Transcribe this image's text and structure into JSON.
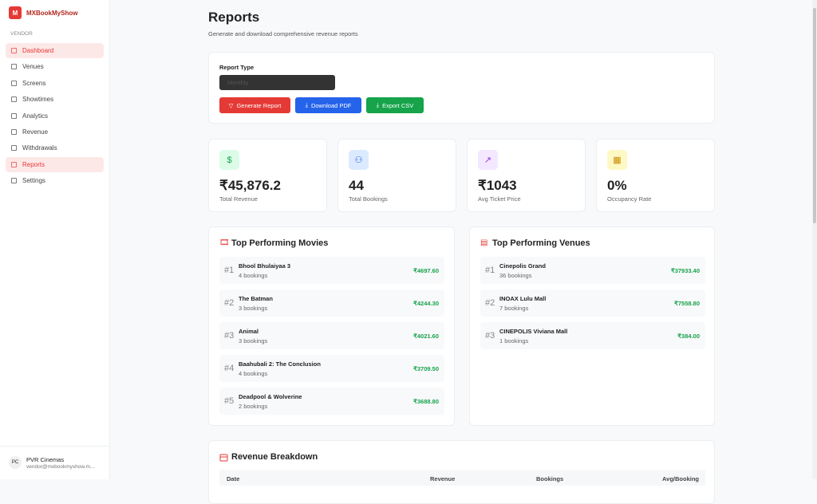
{
  "brand": {
    "logo": "M",
    "name": "MXBookMyShow"
  },
  "sidebar": {
    "section": "VENDOR",
    "nav": [
      "Dashboard",
      "Venues",
      "Screens",
      "Showtimes",
      "Analytics",
      "Revenue",
      "Withdrawals",
      "Reports",
      "Settings"
    ],
    "user": {
      "initials": "PC",
      "name": "PVR Cinemas",
      "email": "vendor@mxbookmyshow.m..."
    }
  },
  "header": {
    "title": "Reports",
    "subtitle": "Generate and download comprehensive revenue reports"
  },
  "report_form": {
    "label": "Report Type",
    "selected": "Monthly",
    "buttons": [
      "Generate Report",
      "Download PDF",
      "Export CSV"
    ]
  },
  "stats": [
    {
      "value": "₹45,876.2",
      "label": "Total Revenue"
    },
    {
      "value": "44",
      "label": "Total Bookings"
    },
    {
      "value": "₹1043",
      "label": "Avg Ticket Price"
    },
    {
      "value": "0%",
      "label": "Occupancy Rate"
    }
  ],
  "top_movies": {
    "title": "Top Performing Movies",
    "items": [
      {
        "rank": "#1",
        "name": "Bhool Bhulaiyaa 3",
        "bookings": "4 bookings",
        "revenue": "₹4697.60"
      },
      {
        "rank": "#2",
        "name": "The Batman",
        "bookings": "3 bookings",
        "revenue": "₹4244.30"
      },
      {
        "rank": "#3",
        "name": "Animal",
        "bookings": "3 bookings",
        "revenue": "₹4021.60"
      },
      {
        "rank": "#4",
        "name": "Baahubali 2: The Conclusion",
        "bookings": "4 bookings",
        "revenue": "₹3709.50"
      },
      {
        "rank": "#5",
        "name": "Deadpool & Wolverine",
        "bookings": "2 bookings",
        "revenue": "₹3688.80"
      }
    ]
  },
  "top_venues": {
    "title": "Top Performing Venues",
    "items": [
      {
        "rank": "#1",
        "name": "Cinepolis Grand",
        "bookings": "36 bookings",
        "revenue": "₹37933.40"
      },
      {
        "rank": "#2",
        "name": "INOAX Lulu Mall",
        "bookings": "7 bookings",
        "revenue": "₹7558.80"
      },
      {
        "rank": "#3",
        "name": "CINEPOLIS Viviana Mall",
        "bookings": "1 bookings",
        "revenue": "₹384.00"
      }
    ]
  },
  "revenue_breakdown": {
    "title": "Revenue Breakdown",
    "columns": [
      "Date",
      "Revenue",
      "Bookings",
      "Avg/Booking"
    ]
  }
}
